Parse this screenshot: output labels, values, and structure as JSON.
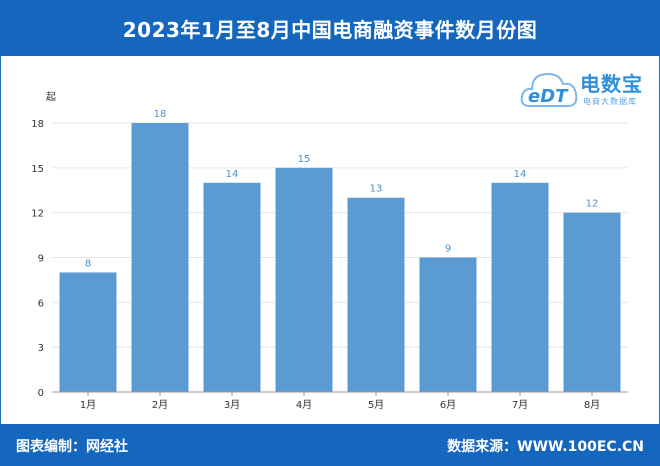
{
  "header": {
    "title": "2023年1月至8月中国电商融资事件数月份图"
  },
  "logo": {
    "brand_name": "电数宝",
    "brand_sub": "电商大数据库",
    "mark": "eDT"
  },
  "footer": {
    "left": "图表编制：网经社",
    "right": "数据来源：WWW.100EC.CN"
  },
  "colors": {
    "bar": "#5b9bd5",
    "header_bg": "#1467bd",
    "value_label": "#4a8fd0",
    "grid": "#e6e6e6"
  },
  "chart_data": {
    "type": "bar",
    "title": "2023年1月至8月中国电商融资事件数月份图",
    "ylabel": "起",
    "xlabel": "",
    "categories": [
      "1月",
      "2月",
      "3月",
      "4月",
      "5月",
      "6月",
      "7月",
      "8月"
    ],
    "values": [
      8,
      18,
      14,
      15,
      13,
      9,
      14,
      12
    ],
    "ylim": [
      0,
      18
    ],
    "yticks": [
      0,
      3,
      6,
      9,
      12,
      15,
      18
    ],
    "grid": true,
    "data_labels": true
  }
}
